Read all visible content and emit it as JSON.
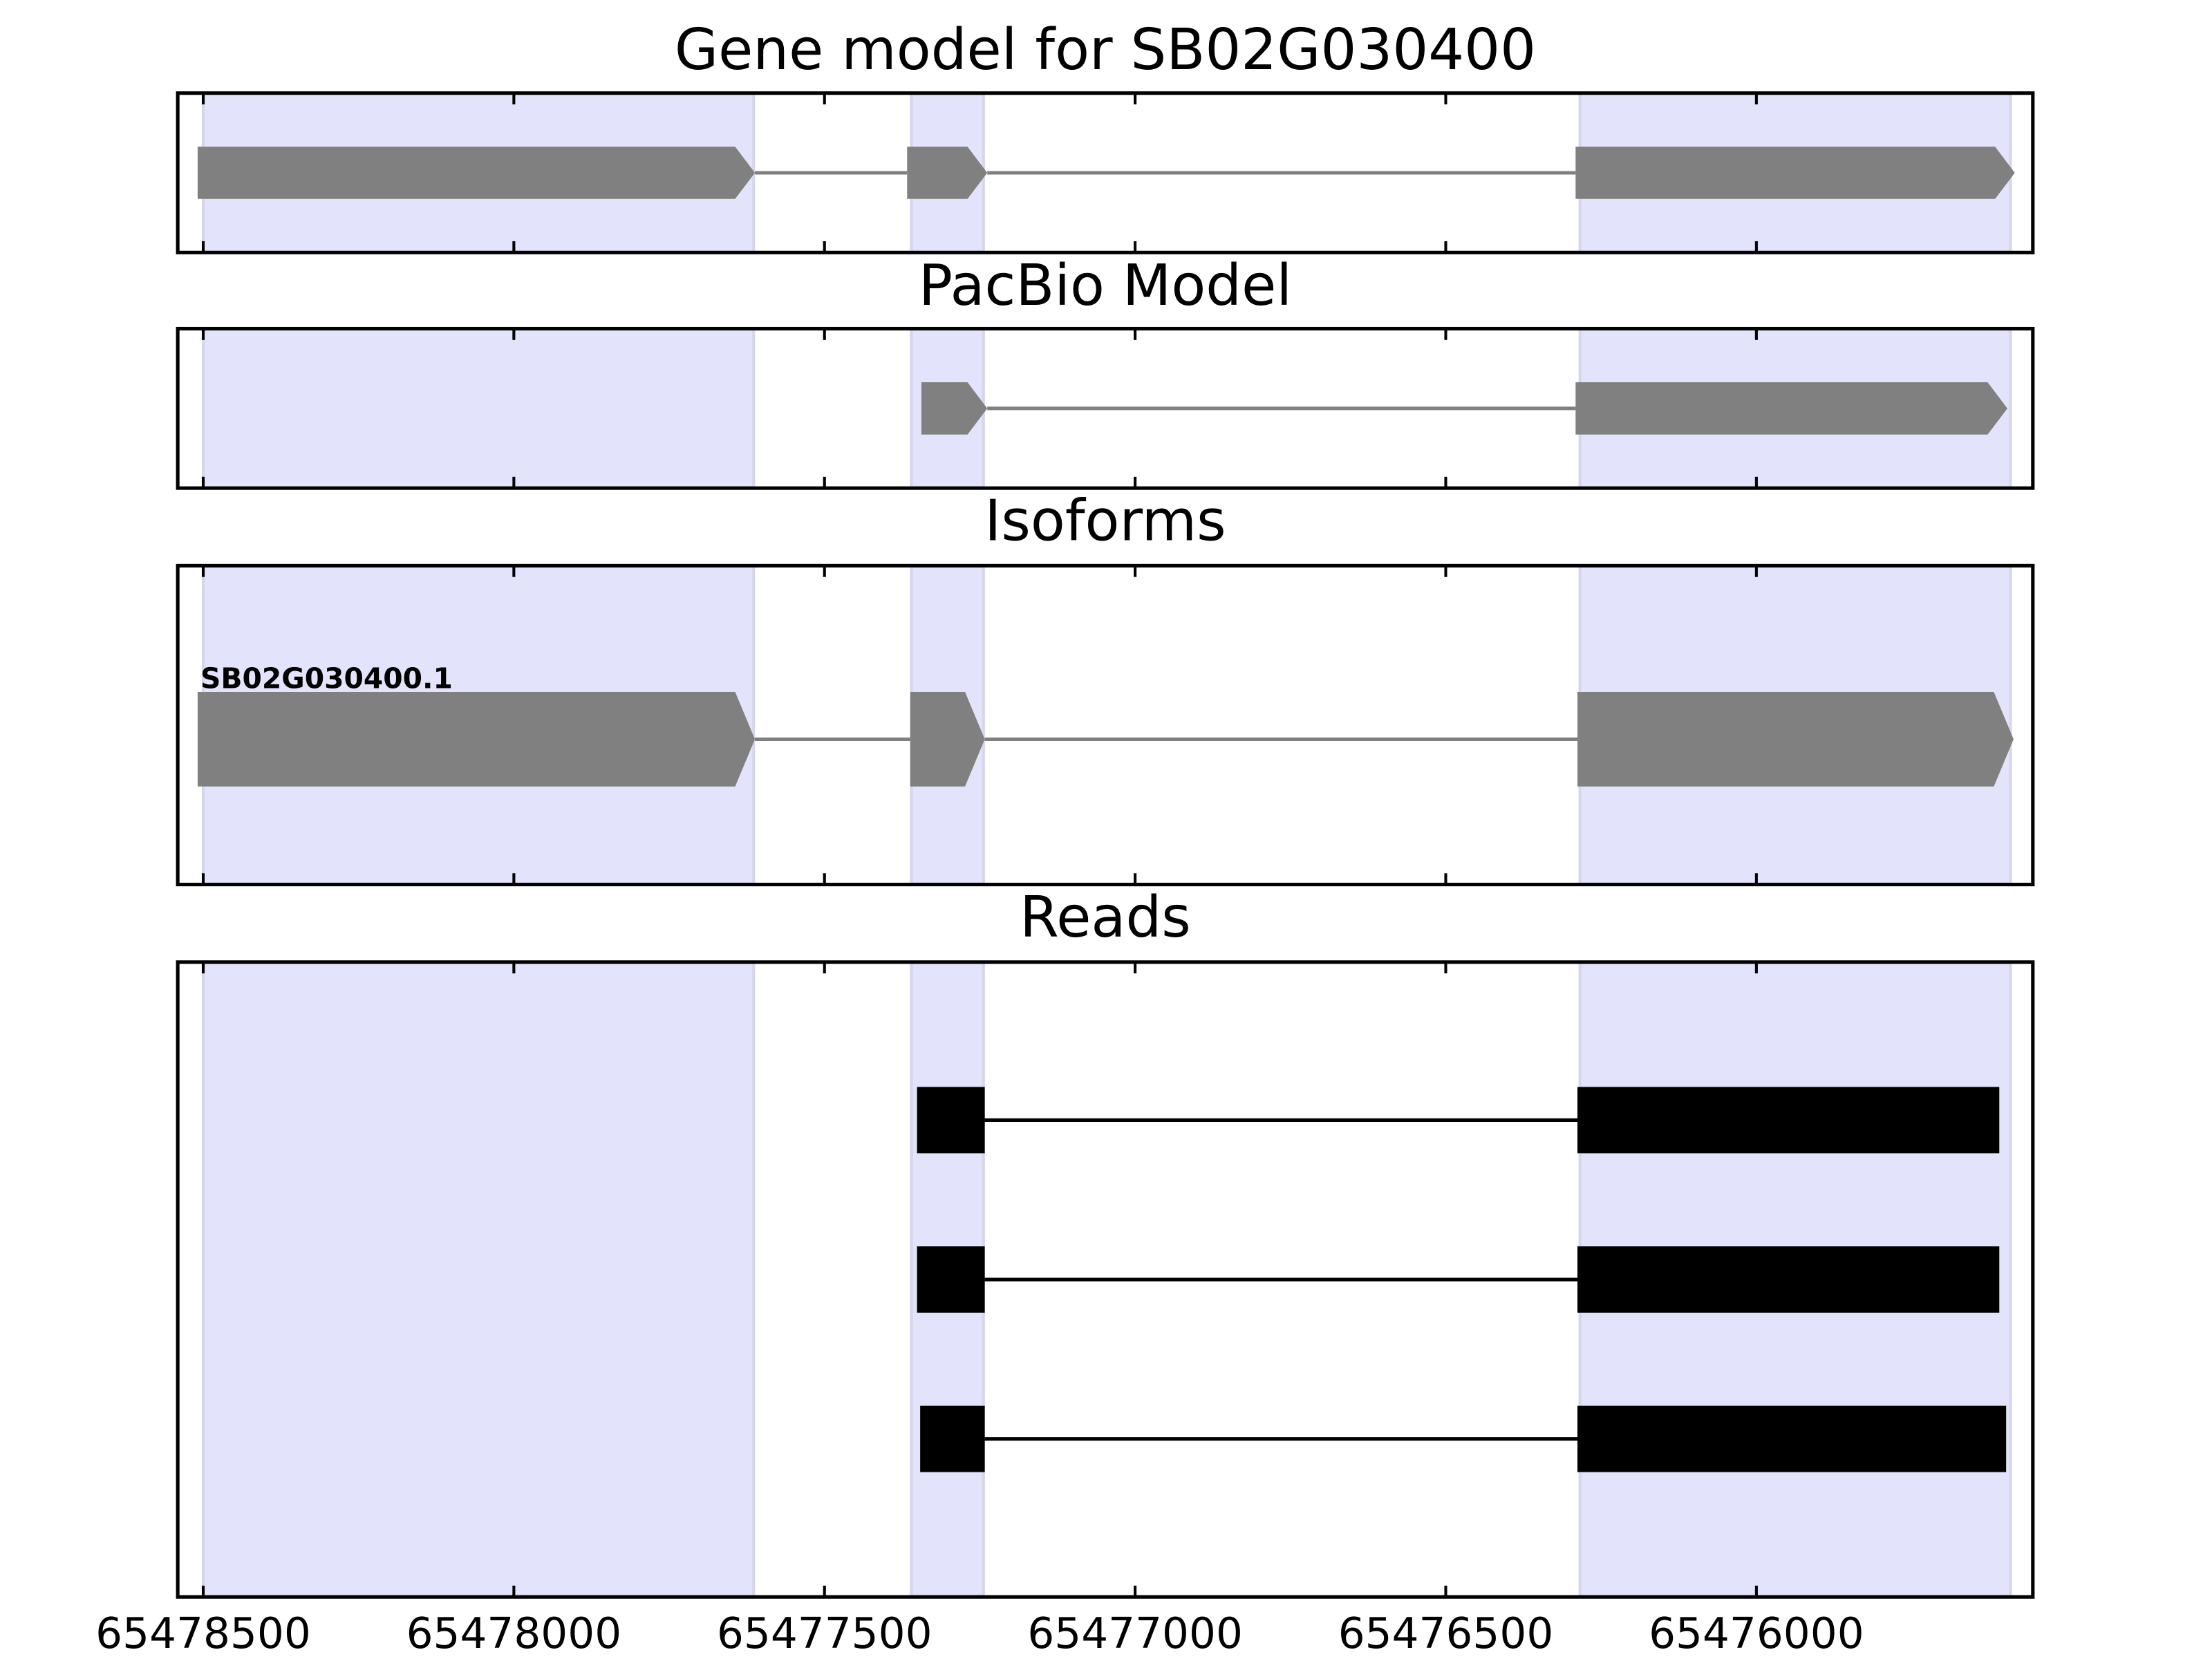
{
  "chart_data": [
    {
      "type": "gene",
      "title": "Gene model for SB02G030400",
      "xlim": [
        65478541,
        65475555
      ],
      "regions": [
        [
          65478500,
          65477614
        ],
        [
          65477360,
          65477244
        ],
        [
          65476284,
          65475591
        ]
      ],
      "features": [
        {
          "exons": [
            [
              65478509,
              65477612
            ],
            [
              65477367,
              65477238
            ],
            [
              65476291,
              65475584
            ]
          ]
        }
      ],
      "color": "#808080"
    },
    {
      "type": "gene",
      "title": "PacBio Model",
      "xlim": [
        65478541,
        65475555
      ],
      "regions": [
        [
          65478500,
          65477614
        ],
        [
          65477360,
          65477244
        ],
        [
          65476284,
          65475591
        ]
      ],
      "features": [
        {
          "exons": [
            [
              65477344,
              65477238
            ],
            [
              65476291,
              65475596
            ]
          ]
        }
      ],
      "color": "#808080"
    },
    {
      "type": "gene",
      "title": "Isoforms",
      "xlim": [
        65478541,
        65475555
      ],
      "regions": [
        [
          65478500,
          65477614
        ],
        [
          65477360,
          65477244
        ],
        [
          65476284,
          65475591
        ]
      ],
      "features": [
        {
          "name": "SB02G030400.1",
          "exons": [
            [
              65478509,
              65477612
            ],
            [
              65477362,
              65477242
            ],
            [
              65476288,
              65475586
            ]
          ]
        }
      ],
      "color": "#808080"
    },
    {
      "type": "reads",
      "title": "Reads",
      "xlim": [
        65478541,
        65475555
      ],
      "regions": [
        [
          65478500,
          65477614
        ],
        [
          65477360,
          65477244
        ],
        [
          65476284,
          65475591
        ]
      ],
      "features": [
        {
          "exons": [
            [
              65477351,
              65477242
            ],
            [
              65476288,
              65475609
            ]
          ]
        },
        {
          "exons": [
            [
              65477351,
              65477242
            ],
            [
              65476288,
              65475609
            ]
          ]
        },
        {
          "exons": [
            [
              65477346,
              65477242
            ],
            [
              65476288,
              65475598
            ]
          ]
        }
      ],
      "color": "#000000",
      "xticks": [
        65478500,
        65478000,
        65477500,
        65477000,
        65476500,
        65476000
      ]
    }
  ]
}
